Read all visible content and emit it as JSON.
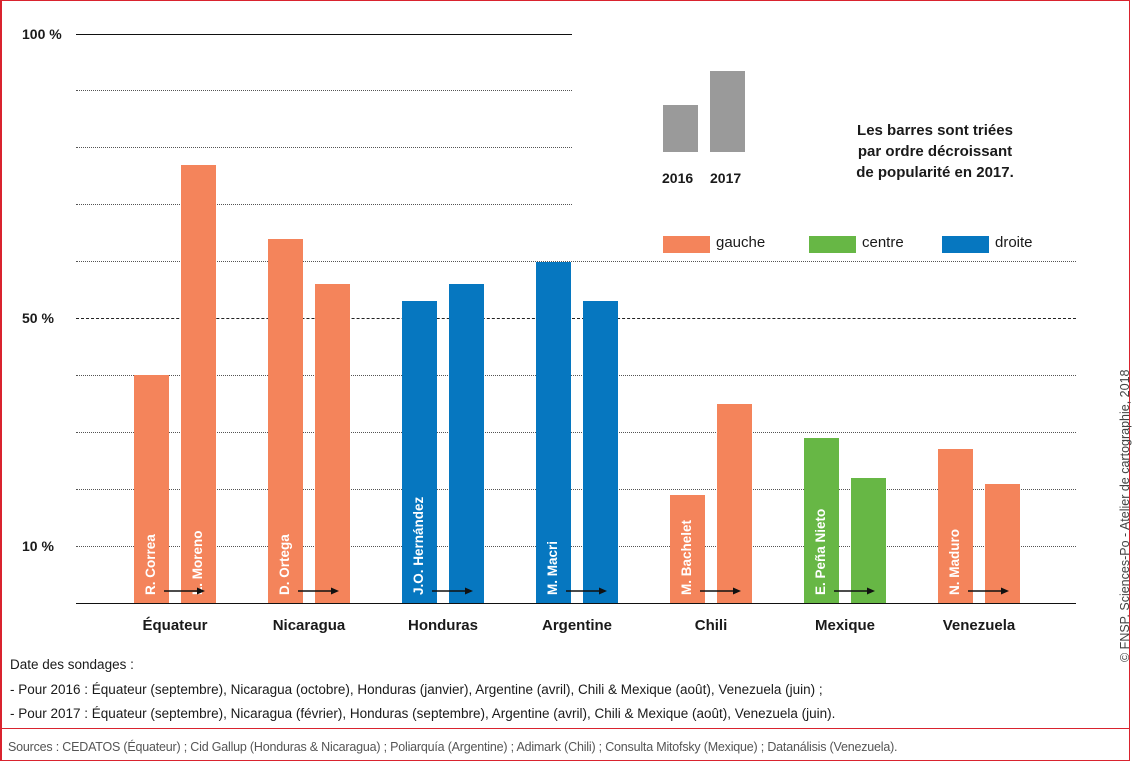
{
  "chart_data": {
    "type": "bar",
    "categories": [
      "Équateur",
      "Nicaragua",
      "Honduras",
      "Argentine",
      "Chili",
      "Mexique",
      "Venezuela"
    ],
    "y_ticks": [
      "100 %",
      "50 %",
      "10 %"
    ],
    "ylim": [
      0,
      100
    ],
    "grid": "dotted horizontal",
    "bars": [
      {
        "category": "Équateur",
        "leader": "R. Correa",
        "year": "2016",
        "value": 40,
        "orientation": "gauche"
      },
      {
        "category": "Équateur",
        "leader": "L. Moreno",
        "year": "2017",
        "value": 77,
        "orientation": "gauche"
      },
      {
        "category": "Nicaragua",
        "leader": "D. Ortega",
        "year": "2016",
        "value": 64,
        "orientation": "gauche"
      },
      {
        "category": "Nicaragua",
        "leader": "",
        "year": "2017",
        "value": 56,
        "orientation": "gauche"
      },
      {
        "category": "Honduras",
        "leader": "J.O. Hernández",
        "year": "2016",
        "value": 53,
        "orientation": "droite"
      },
      {
        "category": "Honduras",
        "leader": "",
        "year": "2017",
        "value": 56,
        "orientation": "droite"
      },
      {
        "category": "Argentine",
        "leader": "M. Macri",
        "year": "2016",
        "value": 60,
        "orientation": "droite"
      },
      {
        "category": "Argentine",
        "leader": "",
        "year": "2017",
        "value": 53,
        "orientation": "droite"
      },
      {
        "category": "Chili",
        "leader": "M. Bachelet",
        "year": "2016",
        "value": 19,
        "orientation": "gauche"
      },
      {
        "category": "Chili",
        "leader": "",
        "year": "2017",
        "value": 35,
        "orientation": "gauche"
      },
      {
        "category": "Mexique",
        "leader": "E. Peña Nieto",
        "year": "2016",
        "value": 29,
        "orientation": "centre"
      },
      {
        "category": "Mexique",
        "leader": "",
        "year": "2017",
        "value": 22,
        "orientation": "centre"
      },
      {
        "category": "Venezuela",
        "leader": "N. Maduro",
        "year": "2016",
        "value": 27,
        "orientation": "gauche"
      },
      {
        "category": "Venezuela",
        "leader": "",
        "year": "2017",
        "value": 21,
        "orientation": "gauche"
      }
    ],
    "legend": {
      "years": [
        "2016",
        "2017"
      ],
      "note": [
        "Les barres sont triées",
        "par ordre décroissant",
        "de popularité en 2017."
      ],
      "orientations": [
        {
          "label": "gauche",
          "color": "#f4845b"
        },
        {
          "label": "centre",
          "color": "#67b745"
        },
        {
          "label": "droite",
          "color": "#0677c0"
        }
      ]
    }
  },
  "colors": {
    "gauche": "#f4845b",
    "centre": "#67b745",
    "droite": "#0677c0",
    "legend_gray": "#9a9a9a",
    "frame": "#d9232e"
  },
  "notes": {
    "title": "Date des sondages :",
    "line_2016": "- Pour 2016 : Équateur (septembre), Nicaragua (octobre), Honduras (janvier), Argentine (avril), Chili & Mexique (août), Venezuela (juin) ;",
    "line_2017": "- Pour 2017 : Équateur (septembre), Nicaragua (février), Honduras (septembre), Argentine (avril), Chili & Mexique (août), Venezuela (juin)."
  },
  "sources": "Sources : CEDATOS (Équateur) ; Cid Gallup (Honduras & Nicaragua) ; Poliarquía (Argentine) ; Adimark (Chili) ; Consulta Mitofsky (Mexique) ; Datanálisis (Venezuela).",
  "credit": "© FNSP. Sciences-Po - Atelier de cartographie, 2018"
}
